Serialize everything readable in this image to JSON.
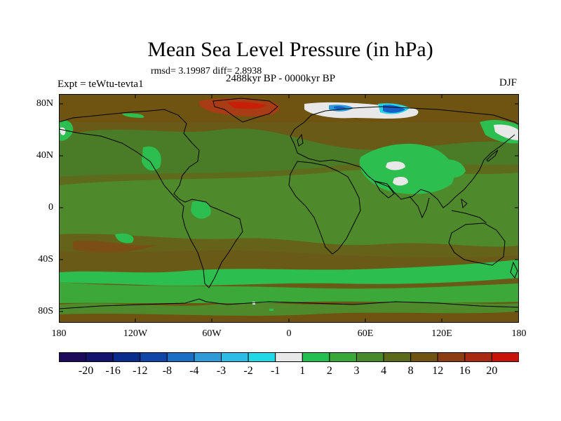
{
  "title": "Mean Sea Level Pressure (in hPa)",
  "stats_text": "rmsd= 3.19987 diff= 2.8938",
  "period": "2488kyr BP - 0000kyr BP",
  "experiment": "Expt = teWtu-tevta1",
  "season": "DJF",
  "lat_labels": [
    "80N",
    "40N",
    "0",
    "40S",
    "80S"
  ],
  "lon_labels": [
    "180",
    "120W",
    "60W",
    "0",
    "60E",
    "120E",
    "180"
  ],
  "colorbar": {
    "levels": [
      "-20",
      "-16",
      "-12",
      "-8",
      "-4",
      "-3",
      "-2",
      "-1",
      "1",
      "2",
      "3",
      "4",
      "8",
      "12",
      "16",
      "20"
    ],
    "colors": [
      "#1e0a5a",
      "#14146e",
      "#0a2c8c",
      "#1046a8",
      "#1a6ec4",
      "#2e9ad8",
      "#2cbce6",
      "#20d8e6",
      "#e8e8e8",
      "#22c050",
      "#3aa838",
      "#488a2a",
      "#5a6a18",
      "#6e5410",
      "#8c3c10",
      "#a82810",
      "#c81408"
    ]
  },
  "palette": {
    "base_brown": "#6a5a18",
    "olive": "#4e8a2c",
    "light_green": "#2cbf50",
    "medium_green": "#3da83a",
    "blue_dark": "#1460c8",
    "blue_mid": "#2e9ad8",
    "cyan": "#28d4e6",
    "white": "#e8e8e8",
    "red_brown": "#a83c14",
    "red": "#c81e0a"
  }
}
